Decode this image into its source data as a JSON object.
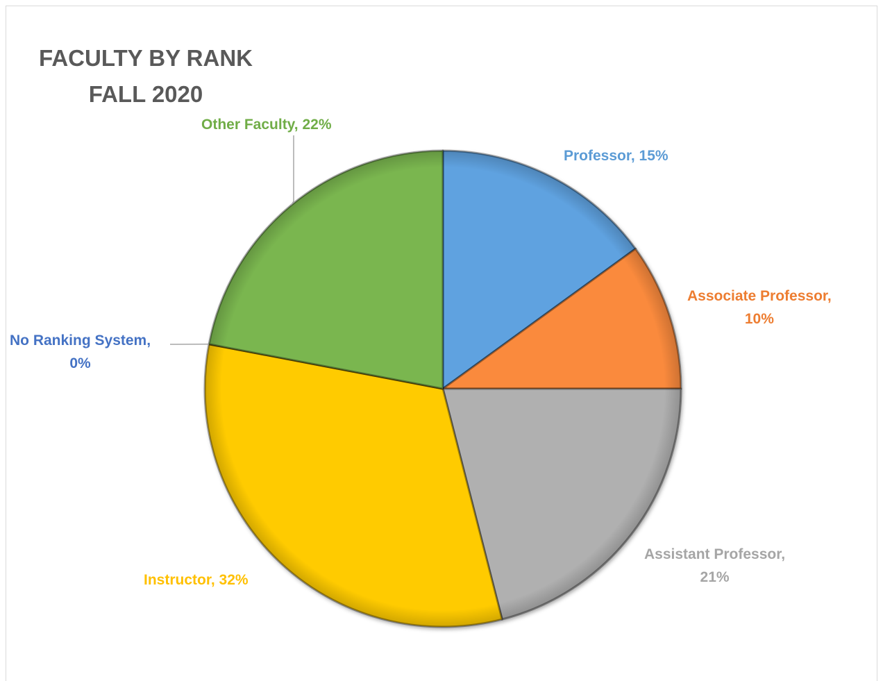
{
  "chart_data": {
    "type": "pie",
    "title": "FACULTY BY RANK",
    "subtitle": "FALL 2020",
    "categories": [
      "Professor",
      "Associate Professor",
      "Assistant Professor",
      "Instructor",
      "No Ranking System",
      "Other Faculty"
    ],
    "values": [
      15,
      10,
      21,
      32,
      0,
      22
    ],
    "colors": [
      "#5fa2e0",
      "#fa8a3c",
      "#b0b0b0",
      "#ffcb05",
      "#4472c4",
      "#7ab650"
    ],
    "labels": [
      {
        "line1": "Professor, 15%",
        "line2": ""
      },
      {
        "line1": "Associate Professor,",
        "line2": "10%"
      },
      {
        "line1": "Assistant Professor,",
        "line2": "21%"
      },
      {
        "line1": "Instructor, 32%",
        "line2": ""
      },
      {
        "line1": "No Ranking System,",
        "line2": "0%"
      },
      {
        "line1": "Other Faculty, 22%",
        "line2": ""
      }
    ],
    "label_colors": [
      "#5b9bd5",
      "#ed7d31",
      "#a5a5a5",
      "#ffc000",
      "#4472c4",
      "#70ad47"
    ],
    "legend": "none"
  }
}
